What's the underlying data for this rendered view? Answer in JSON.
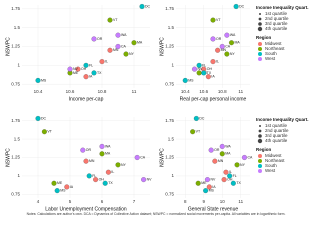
{
  "chart_data": [
    {
      "type": "scatter",
      "x_label": "Income per-cap",
      "y_label": "NSWPC",
      "xlim": [
        10.3,
        11.1
      ],
      "ylim": [
        0.7,
        1.8
      ],
      "xticks": [
        10.4,
        10.6,
        10.8,
        11.0
      ],
      "yticks": [
        0.75,
        1.0,
        1.25,
        1.5,
        1.75
      ],
      "series": [
        {
          "name": "Midwest",
          "color": "#F8766D",
          "x": [
            10.85,
            10.8,
            10.65,
            10.7
          ],
          "y": [
            1.2,
            1.05,
            0.95,
            0.85
          ],
          "labels": [
            "MN",
            "IL",
            "OH",
            "IA"
          ]
        },
        {
          "name": "Northeast",
          "color": "#7CAE00",
          "x": [
            10.85,
            10.95,
            11.0,
            10.6
          ],
          "y": [
            1.6,
            1.15,
            1.3,
            0.9
          ],
          "labels": [
            "VT",
            "NY",
            "MA",
            "ME"
          ]
        },
        {
          "name": "South",
          "color": "#00BFC4",
          "x": [
            11.05,
            10.75,
            10.4,
            10.7
          ],
          "y": [
            1.78,
            0.9,
            0.8,
            1.0
          ],
          "labels": [
            "DC",
            "TX",
            "MS",
            "FL"
          ]
        },
        {
          "name": "West",
          "color": "#C77CFF",
          "x": [
            10.75,
            10.9,
            10.9,
            10.6
          ],
          "y": [
            1.35,
            1.25,
            1.4,
            0.95
          ],
          "labels": [
            "OR",
            "CA",
            "WA",
            "NV"
          ]
        }
      ]
    },
    {
      "type": "scatter",
      "x_label": "Real per-cap personal income",
      "y_label": "NSWPC",
      "xlim": [
        10.3,
        11.1
      ],
      "ylim": [
        0.7,
        1.8
      ],
      "xticks": [
        10.4,
        10.6,
        10.8,
        11.0
      ],
      "yticks": [
        0.75,
        1.0,
        1.25,
        1.5,
        1.75
      ],
      "series": [
        {
          "name": "Midwest",
          "color": "#F8766D",
          "x": [
            10.75,
            10.7,
            10.6,
            10.65
          ],
          "y": [
            1.2,
            1.05,
            0.95,
            0.85
          ],
          "labels": [
            "MN",
            "IL",
            "OH",
            "IA"
          ]
        },
        {
          "name": "Northeast",
          "color": "#7CAE00",
          "x": [
            10.7,
            10.85,
            10.9,
            10.55
          ],
          "y": [
            1.6,
            1.15,
            1.3,
            0.9
          ],
          "labels": [
            "VT",
            "NY",
            "MA",
            "ME"
          ]
        },
        {
          "name": "South",
          "color": "#00BFC4",
          "x": [
            10.95,
            10.6,
            10.4,
            10.55
          ],
          "y": [
            1.78,
            0.9,
            0.8,
            1.0
          ],
          "labels": [
            "DC",
            "TX",
            "MS",
            "FL"
          ]
        },
        {
          "name": "West",
          "color": "#C77CFF",
          "x": [
            10.7,
            10.8,
            10.85,
            10.5
          ],
          "y": [
            1.35,
            1.25,
            1.4,
            0.95
          ],
          "labels": [
            "OR",
            "CA",
            "WA",
            "NV"
          ]
        }
      ]
    },
    {
      "type": "scatter",
      "x_label": "Labor Unemployment Compensation",
      "y_label": "NSWPC",
      "xlim": [
        3.5,
        7.5
      ],
      "ylim": [
        0.7,
        1.8
      ],
      "xticks": [
        4,
        5,
        6,
        7
      ],
      "yticks": [
        0.75,
        1.0,
        1.25,
        1.5,
        1.75
      ],
      "series": [
        {
          "name": "Midwest",
          "color": "#F8766D",
          "x": [
            5.5,
            6.2,
            5.8,
            4.9
          ],
          "y": [
            1.2,
            1.05,
            0.95,
            0.85
          ],
          "labels": [
            "MN",
            "IL",
            "OH",
            "IA"
          ]
        },
        {
          "name": "Northeast",
          "color": "#7CAE00",
          "x": [
            4.2,
            6.5,
            6.0,
            4.5
          ],
          "y": [
            1.6,
            1.15,
            1.3,
            0.9
          ],
          "labels": [
            "VT",
            "NY",
            "MA",
            "ME"
          ]
        },
        {
          "name": "South",
          "color": "#00BFC4",
          "x": [
            4.0,
            6.1,
            4.6,
            5.6
          ],
          "y": [
            1.78,
            0.9,
            0.8,
            1.0
          ],
          "labels": [
            "DC",
            "TX",
            "MS",
            "FL"
          ]
        },
        {
          "name": "West",
          "color": "#C77CFF",
          "x": [
            5.4,
            7.1,
            6.0,
            7.3
          ],
          "y": [
            1.35,
            1.25,
            1.4,
            0.95
          ],
          "labels": [
            "OR",
            "CA",
            "WA",
            "NV"
          ]
        }
      ]
    },
    {
      "type": "scatter",
      "x_label": "General State revenue",
      "y_label": "NSWPC",
      "xlim": [
        7.5,
        11.5
      ],
      "ylim": [
        0.7,
        1.8
      ],
      "xticks": [
        8,
        9,
        10,
        11
      ],
      "yticks": [
        0.75,
        1.0,
        1.25,
        1.5,
        1.75
      ],
      "series": [
        {
          "name": "Midwest",
          "color": "#F8766D",
          "x": [
            9.6,
            10.2,
            10.1,
            9.3
          ],
          "y": [
            1.2,
            1.05,
            0.95,
            0.85
          ],
          "labels": [
            "MN",
            "IL",
            "OH",
            "IA"
          ]
        },
        {
          "name": "Northeast",
          "color": "#7CAE00",
          "x": [
            8.4,
            10.8,
            10.0,
            8.7
          ],
          "y": [
            1.6,
            1.15,
            1.3,
            0.9
          ],
          "labels": [
            "VT",
            "NY",
            "MA",
            "ME"
          ]
        },
        {
          "name": "South",
          "color": "#00BFC4",
          "x": [
            8.6,
            10.6,
            9.1,
            10.4
          ],
          "y": [
            1.78,
            0.9,
            0.8,
            1.0
          ],
          "labels": [
            "DC",
            "TX",
            "MS",
            "FL"
          ]
        },
        {
          "name": "West",
          "color": "#C77CFF",
          "x": [
            9.4,
            11.2,
            10.0,
            9.2
          ],
          "y": [
            1.35,
            1.25,
            1.4,
            0.95
          ],
          "labels": [
            "OR",
            "CA",
            "WA",
            "NV"
          ]
        }
      ]
    }
  ],
  "legend": {
    "quartile_title": "Income Inequality Quart.",
    "quartiles": [
      "1st quartile",
      "2nd quartile",
      "3rd quartile",
      "4th quartile"
    ],
    "region_title": "Region"
  },
  "note": "Notes: Calculations are author's own. DCA = Dynamics of Collective Action dataset; NSWPC = normalized social movements per-capita. All variables are in logarithmic form."
}
